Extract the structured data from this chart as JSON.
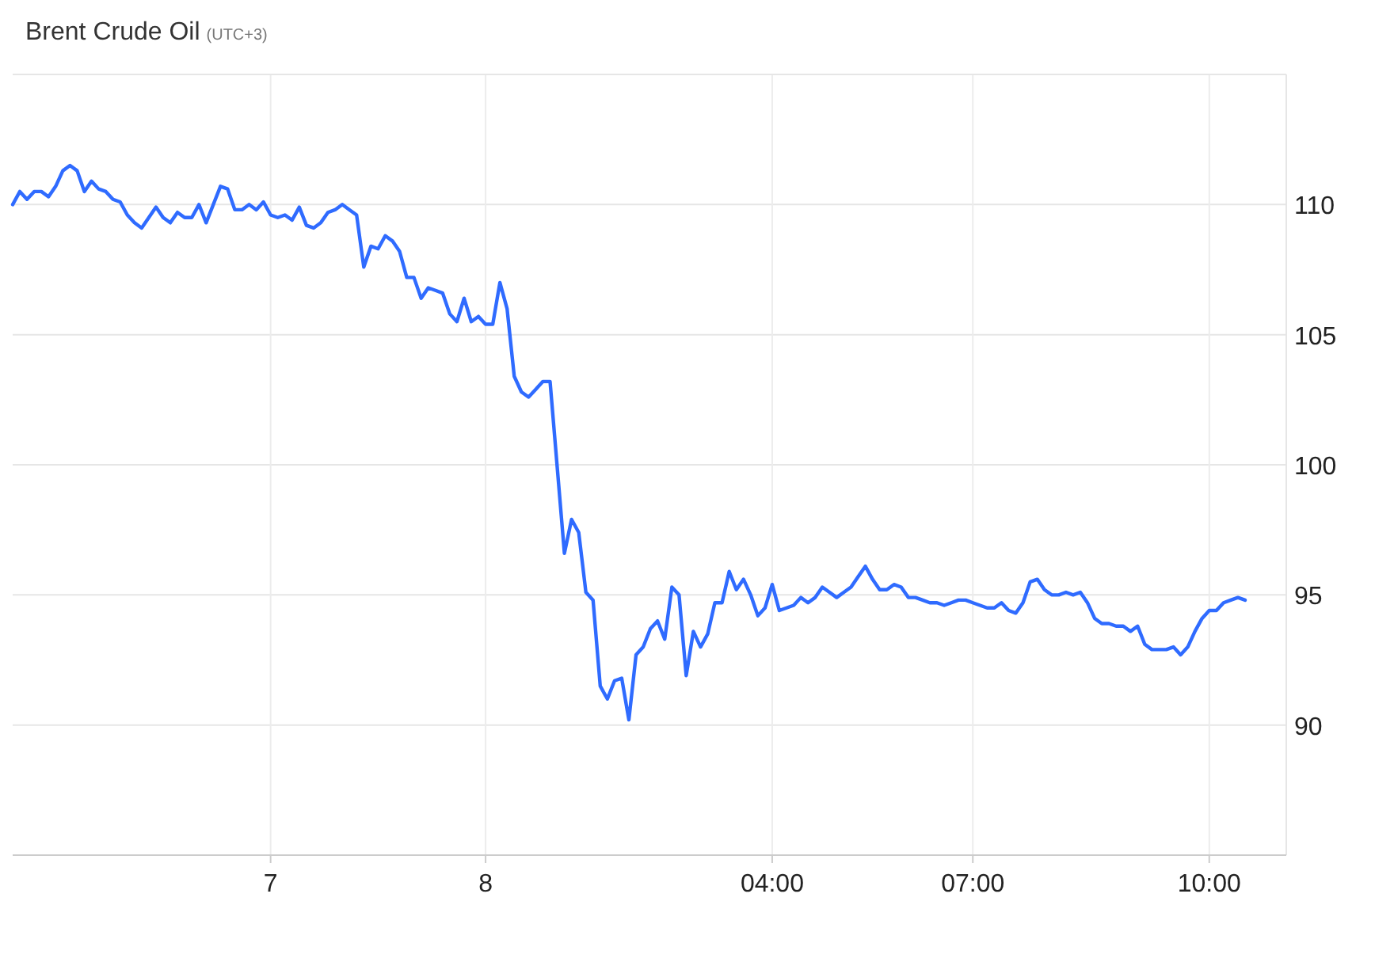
{
  "chart_data": {
    "type": "line",
    "title": "Brent Crude Oil",
    "subtitle": "(UTC+3)",
    "categories": [
      null,
      null,
      null,
      null,
      null,
      null,
      null,
      null,
      null,
      null,
      null,
      null,
      null,
      null,
      null,
      null,
      null,
      null,
      null,
      null,
      null,
      null,
      null,
      null,
      null,
      null,
      null,
      null,
      null,
      null,
      null,
      null,
      null,
      null,
      null,
      null,
      "7",
      null,
      null,
      null,
      null,
      null,
      null,
      null,
      null,
      null,
      null,
      null,
      null,
      null,
      null,
      null,
      null,
      null,
      null,
      null,
      null,
      null,
      null,
      null,
      null,
      null,
      null,
      null,
      null,
      null,
      "8",
      null,
      null,
      null,
      null,
      null,
      null,
      null,
      null,
      null,
      null,
      null,
      null,
      null,
      null,
      null,
      null,
      null,
      null,
      null,
      null,
      null,
      null,
      null,
      null,
      null,
      null,
      null,
      null,
      null,
      null,
      null,
      null,
      null,
      null,
      null,
      null,
      null,
      null,
      null,
      "04:00",
      null,
      null,
      null,
      null,
      null,
      null,
      null,
      null,
      null,
      null,
      null,
      null,
      null,
      null,
      null,
      null,
      null,
      null,
      null,
      null,
      null,
      null,
      null,
      null,
      null,
      null,
      null,
      "07:00",
      null,
      null,
      null,
      null,
      null,
      null,
      null,
      null,
      null,
      null,
      null,
      null,
      null,
      null,
      null,
      null,
      null,
      null,
      null,
      null,
      null,
      null,
      null,
      null,
      null,
      null,
      null,
      null,
      null,
      null,
      null,
      null,
      "10:00",
      null,
      null,
      null,
      null,
      null
    ],
    "series": [
      {
        "color": "#2f6bff",
        "values": [
          110.0,
          110.5,
          110.2,
          110.5,
          110.5,
          110.3,
          110.7,
          111.3,
          111.5,
          111.3,
          110.5,
          110.9,
          110.6,
          110.5,
          110.2,
          110.1,
          109.6,
          109.3,
          109.1,
          109.5,
          109.9,
          109.5,
          109.3,
          109.7,
          109.5,
          109.5,
          110.0,
          109.3,
          110.0,
          110.7,
          110.6,
          109.8,
          109.8,
          110.0,
          109.8,
          110.1,
          109.6,
          109.5,
          109.6,
          109.4,
          109.9,
          109.2,
          109.1,
          109.3,
          109.7,
          109.8,
          110.0,
          109.8,
          109.6,
          107.6,
          108.4,
          108.3,
          108.8,
          108.6,
          108.2,
          107.2,
          107.2,
          106.4,
          106.8,
          106.7,
          106.6,
          105.8,
          105.5,
          106.4,
          105.5,
          105.7,
          105.4,
          105.4,
          107.0,
          106.0,
          103.4,
          102.8,
          102.6,
          102.9,
          103.2,
          103.2,
          99.9,
          96.6,
          97.9,
          97.4,
          95.1,
          94.8,
          91.5,
          91.0,
          91.7,
          91.8,
          90.2,
          92.7,
          93.0,
          93.7,
          94.0,
          93.3,
          95.3,
          95.0,
          91.9,
          93.6,
          93.0,
          93.5,
          94.7,
          94.7,
          95.9,
          95.2,
          95.6,
          95.0,
          94.2,
          94.5,
          95.4,
          94.4,
          94.5,
          94.6,
          94.9,
          94.7,
          94.9,
          95.3,
          95.1,
          94.9,
          95.1,
          95.3,
          95.7,
          96.1,
          95.6,
          95.2,
          95.2,
          95.4,
          95.3,
          94.9,
          94.9,
          94.8,
          94.7,
          94.7,
          94.6,
          94.7,
          94.8,
          94.8,
          94.7,
          94.6,
          94.5,
          94.5,
          94.7,
          94.4,
          94.3,
          94.7,
          95.5,
          95.6,
          95.2,
          95.0,
          95.0,
          95.1,
          95.0,
          95.1,
          94.7,
          94.1,
          93.9,
          93.9,
          93.8,
          93.8,
          93.6,
          93.8,
          93.1,
          92.9,
          92.9,
          92.9,
          93.0,
          92.7,
          93.0,
          93.6,
          94.1,
          94.4,
          94.4,
          94.7,
          94.8,
          94.9,
          94.8
        ]
      }
    ],
    "ylim": [
      85,
      115
    ],
    "yticks": [
      90,
      95,
      100,
      105,
      110
    ],
    "grid": true,
    "marker": "none",
    "line_style": "solid"
  }
}
